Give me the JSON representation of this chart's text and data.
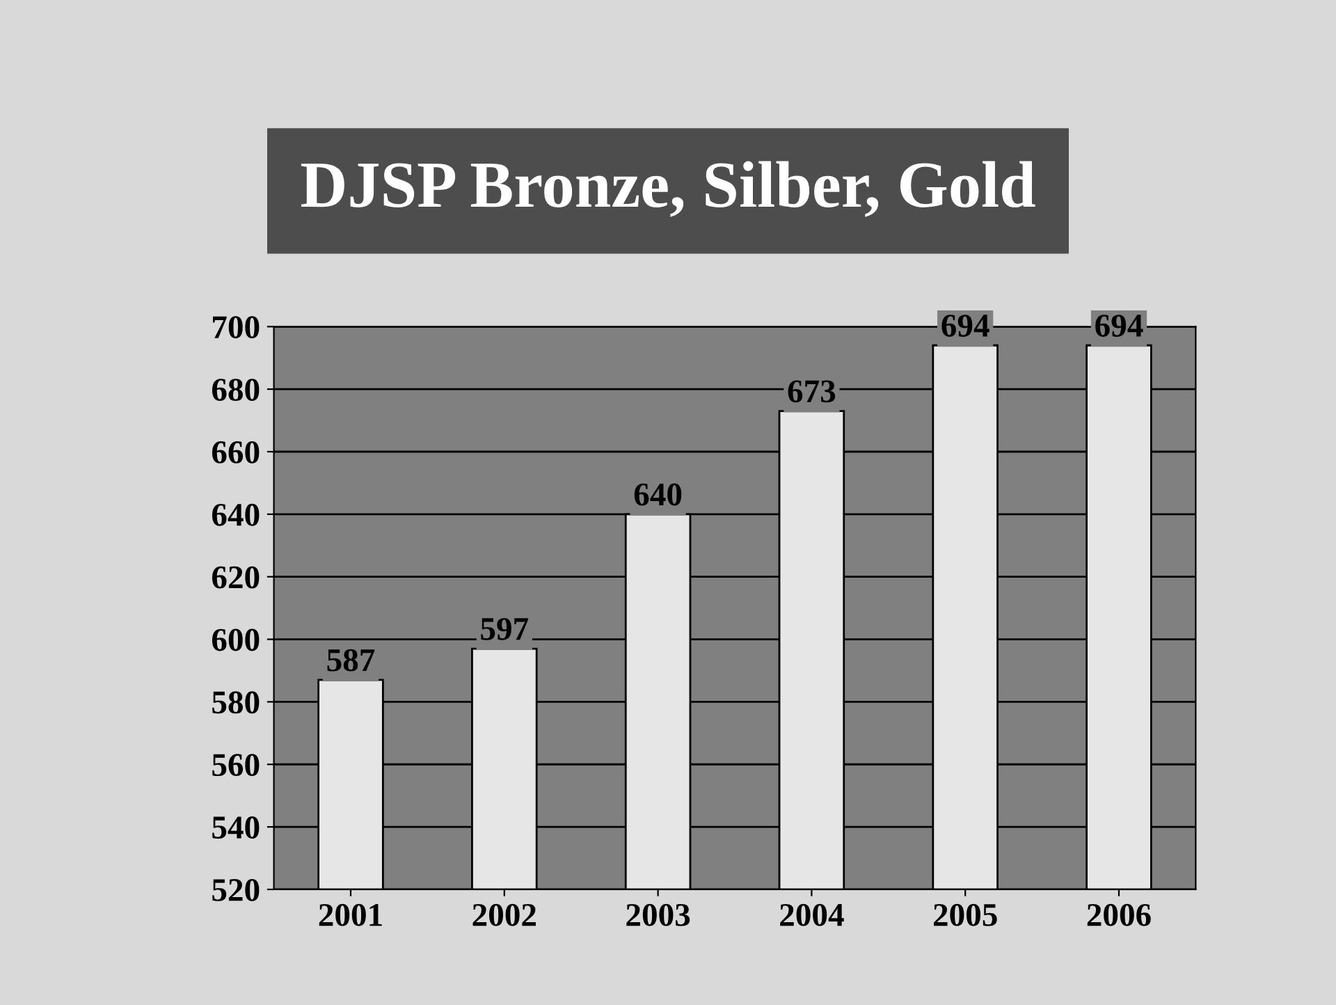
{
  "chart_data": {
    "type": "bar",
    "title": "DJSP Bronze, Silber, Gold",
    "categories": [
      "2001",
      "2002",
      "2003",
      "2004",
      "2005",
      "2006"
    ],
    "values": [
      587,
      597,
      640,
      673,
      694,
      694
    ],
    "color": "#e6e6e6",
    "ylim": [
      520,
      700
    ],
    "yticks": [
      520,
      540,
      560,
      580,
      600,
      620,
      640,
      660,
      680,
      700
    ],
    "grid": "y",
    "data_labels": true
  }
}
